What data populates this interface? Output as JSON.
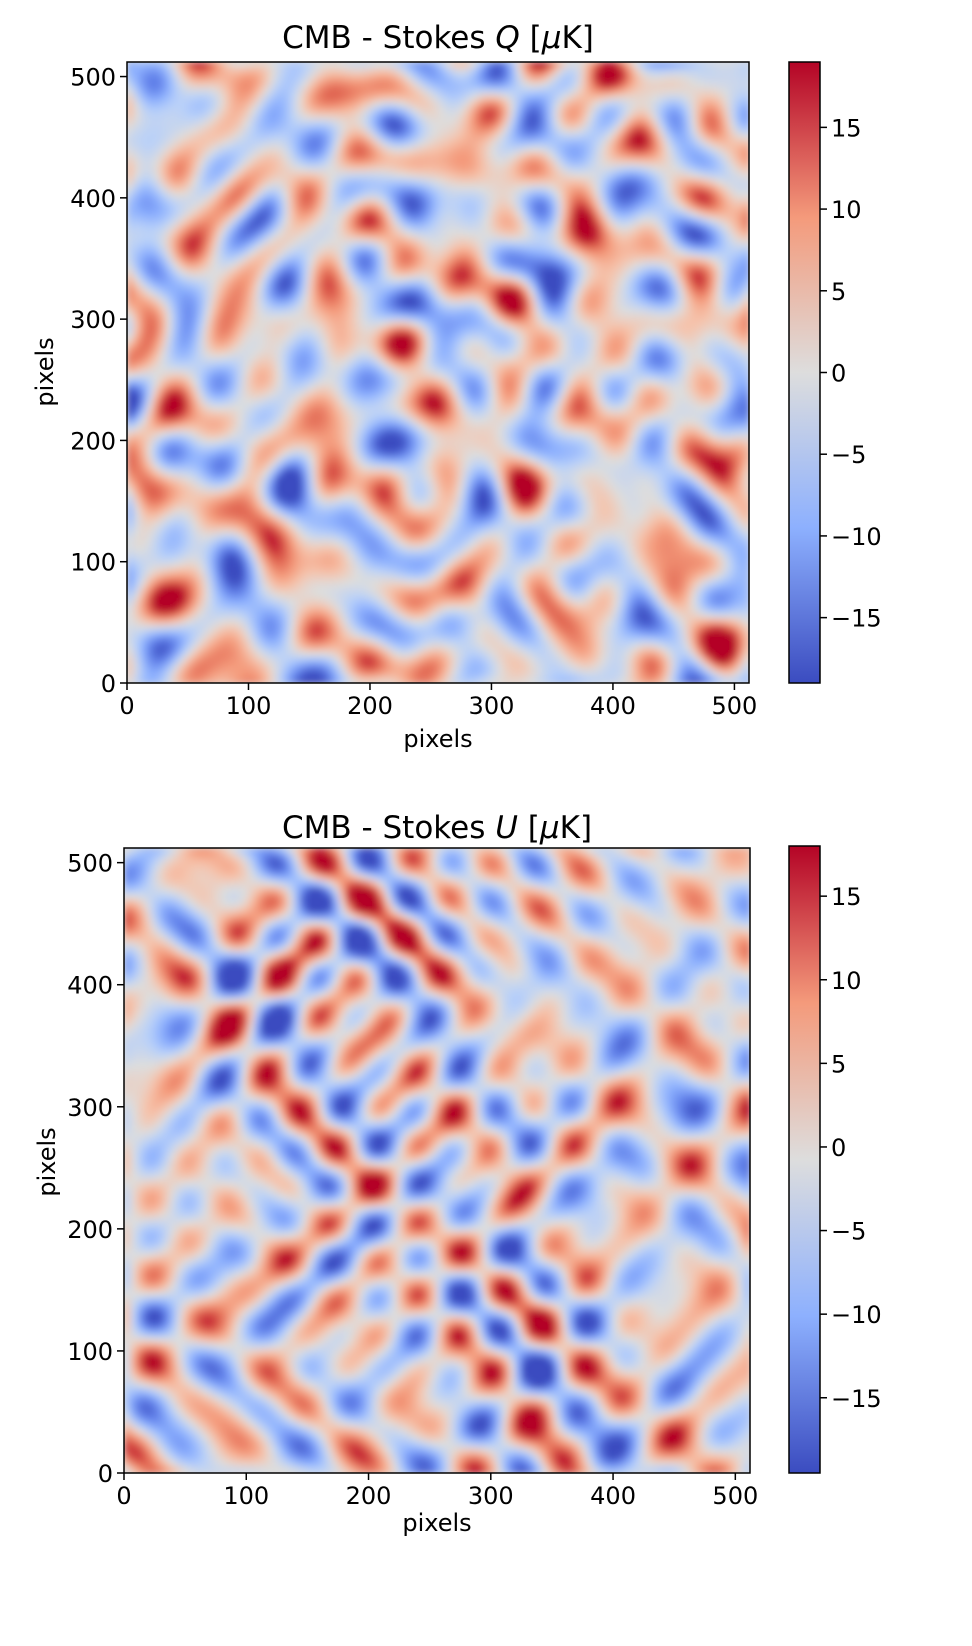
{
  "chart_data": [
    {
      "type": "heatmap",
      "title_prefix": "CMB - Stokes ",
      "title_var": "Q",
      "title_suffix": " [",
      "title_unit_greek": "μ",
      "title_unit_tail": "K]",
      "xlabel": "pixels",
      "ylabel": "pixels",
      "xlim": [
        0,
        512
      ],
      "ylim": [
        0,
        512
      ],
      "xticks": [
        0,
        100,
        200,
        300,
        400,
        500
      ],
      "yticks": [
        0,
        100,
        200,
        300,
        400,
        500
      ],
      "colormap": "coolwarm",
      "colorbar_range": [
        -19,
        19
      ],
      "colorbar_ticks": [
        15,
        10,
        5,
        0,
        -5,
        -10,
        -15
      ],
      "colorbar_tick_labels": [
        "15",
        "10",
        "5",
        "0",
        "−5",
        "−10",
        "−15"
      ],
      "pattern": "isotropic"
    },
    {
      "type": "heatmap",
      "title_prefix": "CMB - Stokes ",
      "title_var": "U",
      "title_suffix": " [",
      "title_unit_greek": "μ",
      "title_unit_tail": "K]",
      "xlabel": "pixels",
      "ylabel": "pixels",
      "xlim": [
        0,
        512
      ],
      "ylim": [
        0,
        512
      ],
      "xticks": [
        0,
        100,
        200,
        300,
        400,
        500
      ],
      "yticks": [
        0,
        100,
        200,
        300,
        400,
        500
      ],
      "colormap": "coolwarm",
      "colorbar_range": [
        -19.5,
        18
      ],
      "colorbar_ticks": [
        15,
        10,
        5,
        0,
        -5,
        -10,
        -15
      ],
      "colorbar_tick_labels": [
        "15",
        "10",
        "5",
        "0",
        "−5",
        "−10",
        "−15"
      ],
      "pattern": "diagonal"
    }
  ],
  "colors": {
    "cmap_low": "#3b4cc0",
    "cmap_mid": "#dddddd",
    "cmap_high": "#b40426"
  }
}
